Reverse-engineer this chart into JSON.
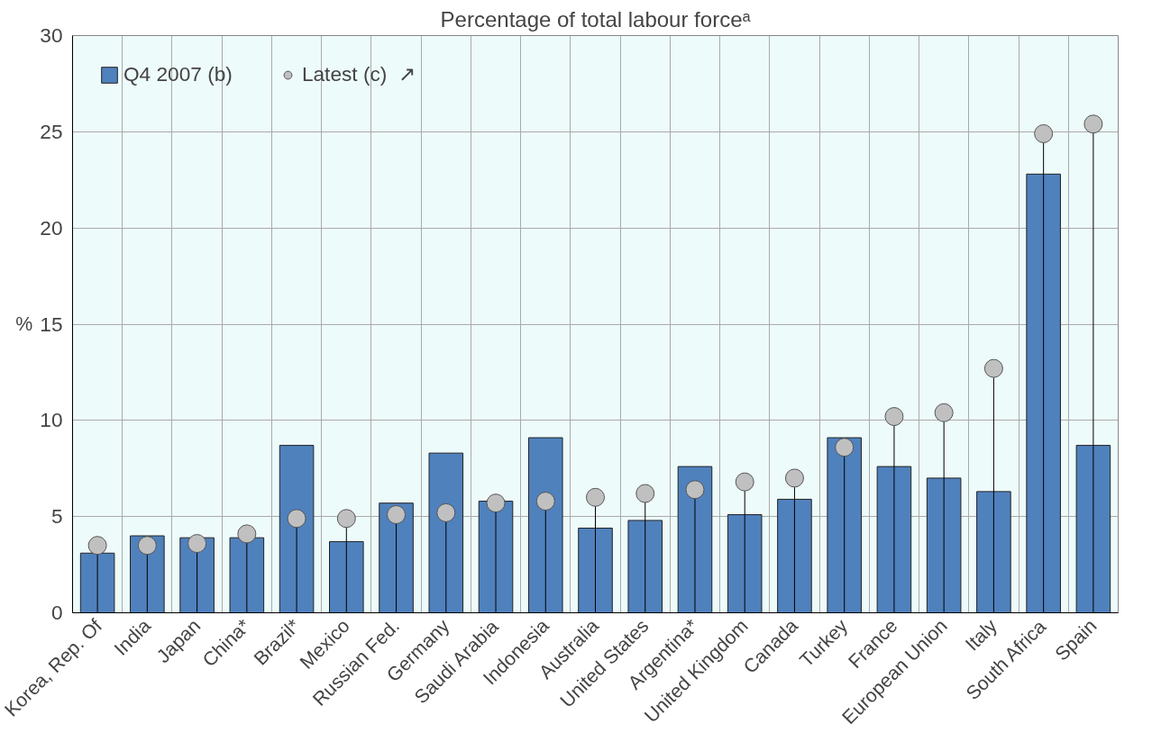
{
  "chart_data": {
    "type": "bar",
    "title": "Percentage of total labour forceᵃ",
    "ylabel": "%",
    "categories": [
      "Korea, Rep. Of",
      "India",
      "Japan",
      "China*",
      "Brazil*",
      "Mexico",
      "Russian Fed.",
      "Germany",
      "Saudi Arabia",
      "Indonesia",
      "Australia",
      "United States",
      "Argentina*",
      "United Kingdom",
      "Canada",
      "Turkey",
      "France",
      "European Union",
      "Italy",
      "South Africa",
      "Spain"
    ],
    "series": [
      {
        "name": "Q4 2007 (b)",
        "color": "#4f81bd",
        "values": [
          3.1,
          4.0,
          3.9,
          3.9,
          8.7,
          3.7,
          5.7,
          8.3,
          5.8,
          9.1,
          4.4,
          4.8,
          7.6,
          5.1,
          5.9,
          9.1,
          7.6,
          7.0,
          6.3,
          22.8,
          8.7
        ]
      },
      {
        "name": "Latest (c)  ↗",
        "type": "lollipop",
        "color": "#c0c0c0",
        "values": [
          3.5,
          3.5,
          3.6,
          4.1,
          4.9,
          4.9,
          5.1,
          5.2,
          5.7,
          5.8,
          6.0,
          6.2,
          6.4,
          6.8,
          7.0,
          8.6,
          10.2,
          10.4,
          12.7,
          24.9,
          25.4
        ]
      }
    ],
    "ylim": [
      0,
      30
    ],
    "yticks": [
      0,
      5,
      10,
      15,
      20,
      25,
      30
    ],
    "grid": true,
    "legend": "top left",
    "marker": "circle"
  }
}
